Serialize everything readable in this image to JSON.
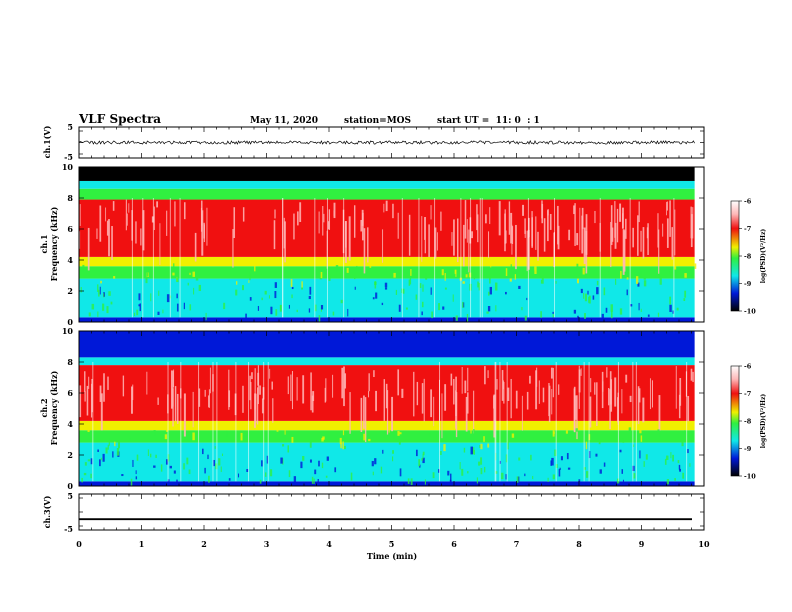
{
  "header": {
    "title": "VLF Spectra",
    "date": "May 11, 2020",
    "station": "station=MOS",
    "start": "start UT =  11: 0  : 1"
  },
  "colors": {
    "black": "#000000",
    "blue": "#0018d8",
    "cyan": "#10e8e8",
    "green": "#30f040",
    "yellow": "#f0f000",
    "red": "#f01010",
    "pink": "#ffb8b8"
  },
  "chart_data": [
    {
      "type": "line",
      "panel": "ch1-waveform",
      "ylabel": "ch.1(V)",
      "yticks": [
        "5",
        "-5"
      ],
      "ylim": [
        -5,
        5
      ],
      "series": [
        {
          "description": "noise trace",
          "level": 0
        }
      ]
    },
    {
      "type": "heatmap",
      "panel": "ch1-spectrogram",
      "ylabel": "ch.1\nFrequency (kHz)",
      "yticks": [
        "0",
        "2",
        "4",
        "6",
        "8",
        "10"
      ],
      "ylim": [
        0,
        10
      ],
      "xlim": [
        0,
        10
      ],
      "time_end_min": 9.85,
      "bands_khz": [
        {
          "from": 0.0,
          "to": 0.3,
          "color": "blue"
        },
        {
          "from": 0.3,
          "to": 2.8,
          "color": "cyan"
        },
        {
          "from": 2.8,
          "to": 3.6,
          "color": "green"
        },
        {
          "from": 3.6,
          "to": 4.2,
          "color": "yellow"
        },
        {
          "from": 4.2,
          "to": 7.9,
          "color": "red"
        },
        {
          "from": 7.9,
          "to": 8.6,
          "color": "green"
        },
        {
          "from": 8.6,
          "to": 9.1,
          "color": "cyan"
        },
        {
          "from": 9.1,
          "to": 10.0,
          "color": "black"
        }
      ],
      "colorbar": {
        "label": "log(PSD)(V²/Hz)",
        "ticks": [
          "-6",
          "-7",
          "-8",
          "-9",
          "-10"
        ],
        "range": [
          -10,
          -6
        ]
      }
    },
    {
      "type": "heatmap",
      "panel": "ch2-spectrogram",
      "ylabel": "ch.2\nFrequency (kHz)",
      "yticks": [
        "0",
        "2",
        "4",
        "6",
        "8",
        "10"
      ],
      "ylim": [
        0,
        10
      ],
      "xlim": [
        0,
        10
      ],
      "time_end_min": 9.85,
      "bands_khz": [
        {
          "from": 0.0,
          "to": 0.3,
          "color": "blue"
        },
        {
          "from": 0.3,
          "to": 2.8,
          "color": "cyan"
        },
        {
          "from": 2.8,
          "to": 3.6,
          "color": "green"
        },
        {
          "from": 3.6,
          "to": 4.2,
          "color": "yellow"
        },
        {
          "from": 4.2,
          "to": 7.8,
          "color": "red"
        },
        {
          "from": 7.8,
          "to": 8.3,
          "color": "cyan"
        },
        {
          "from": 8.3,
          "to": 10.0,
          "color": "blue"
        }
      ],
      "colorbar": {
        "label": "log(PSD)(V²/Hz)",
        "ticks": [
          "-6",
          "-7",
          "-8",
          "-9",
          "-10"
        ],
        "range": [
          -10,
          -6
        ]
      }
    },
    {
      "type": "line",
      "panel": "ch3-waveform",
      "ylabel": "ch.3(V)",
      "yticks": [
        "5",
        "-5"
      ],
      "ylim": [
        -5,
        5
      ],
      "series": [
        {
          "description": "flat trace",
          "level": -2
        }
      ]
    }
  ],
  "xaxis": {
    "label": "Time (min)",
    "ticks": [
      "0",
      "1",
      "2",
      "3",
      "4",
      "5",
      "6",
      "7",
      "8",
      "9",
      "10"
    ],
    "range": [
      0,
      10
    ]
  }
}
